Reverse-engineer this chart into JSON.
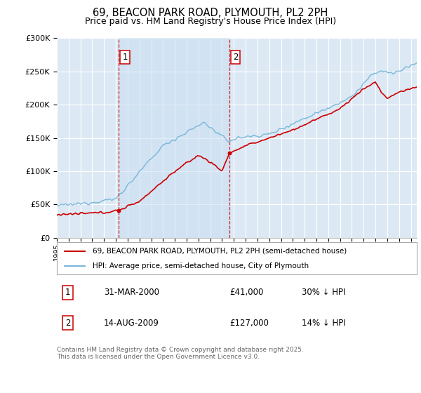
{
  "title": "69, BEACON PARK ROAD, PLYMOUTH, PL2 2PH",
  "subtitle": "Price paid vs. HM Land Registry's House Price Index (HPI)",
  "ylim": [
    0,
    300000
  ],
  "xlim_start": 1995.0,
  "xlim_end": 2025.5,
  "sale1_date": 2000.25,
  "sale1_price": 41000,
  "sale2_date": 2009.62,
  "sale2_price": 127000,
  "hpi_color": "#7ab8d9",
  "price_color": "#cc0000",
  "vline_color": "#cc0000",
  "bg_color": "#dce9f5",
  "bg_between_color": "#cce0f0",
  "grid_color": "#ffffff",
  "legend_line1": "69, BEACON PARK ROAD, PLYMOUTH, PL2 2PH (semi-detached house)",
  "legend_line2": "HPI: Average price, semi-detached house, City of Plymouth",
  "footer": "Contains HM Land Registry data © Crown copyright and database right 2025.\nThis data is licensed under the Open Government Licence v3.0.",
  "xlabel_years": [
    1995,
    1996,
    1997,
    1998,
    1999,
    2000,
    2001,
    2002,
    2003,
    2004,
    2005,
    2006,
    2007,
    2008,
    2009,
    2010,
    2011,
    2012,
    2013,
    2014,
    2015,
    2016,
    2017,
    2018,
    2019,
    2020,
    2021,
    2022,
    2023,
    2024,
    2025
  ]
}
